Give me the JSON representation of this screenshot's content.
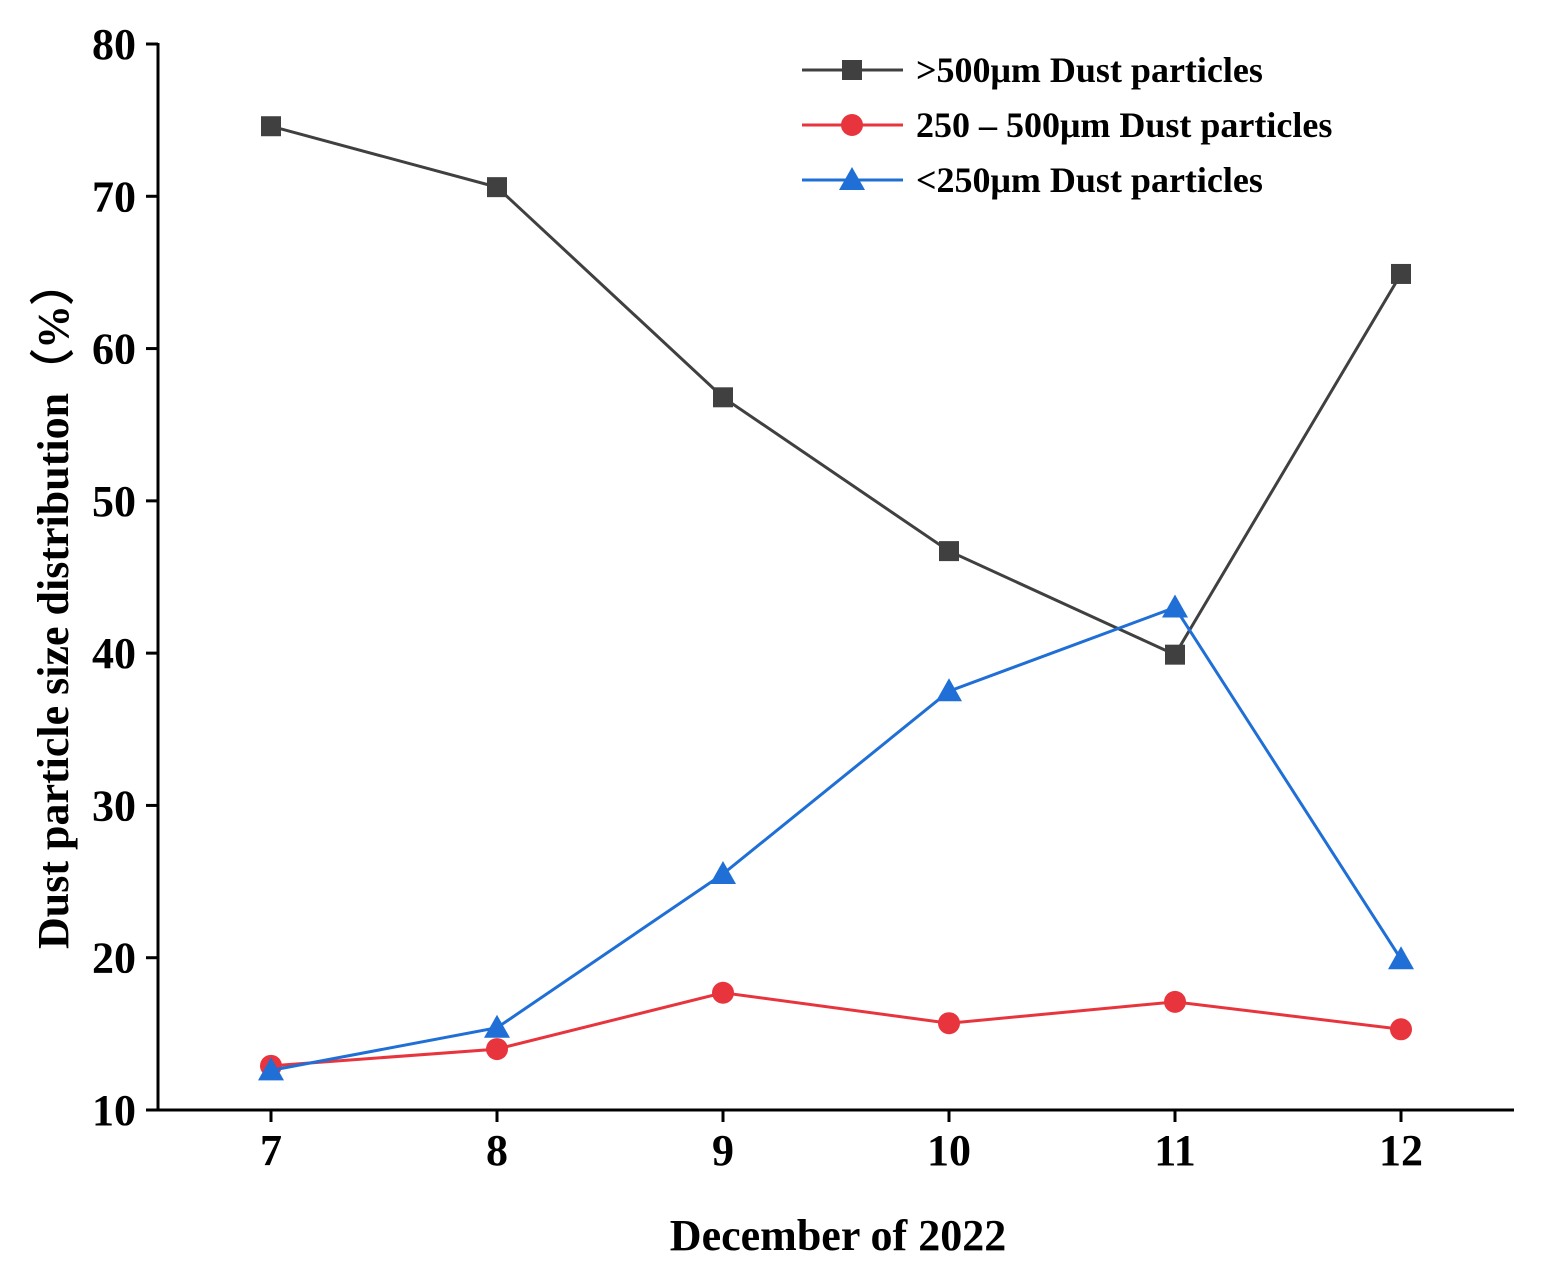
{
  "chart_data": {
    "type": "line",
    "title": "",
    "xlabel": "December of 2022",
    "ylabel": "Dust particle size distribution（%）",
    "x": [
      7,
      8,
      9,
      10,
      11,
      12
    ],
    "x_tick_labels": [
      "7",
      "8",
      "9",
      "10",
      "11",
      "12"
    ],
    "xlim": [
      6.5,
      12.5
    ],
    "ylim": [
      10,
      80
    ],
    "y_ticks": [
      10,
      20,
      30,
      40,
      50,
      60,
      70,
      80
    ],
    "y_tick_labels": [
      "10",
      "20",
      "30",
      "40",
      "50",
      "60",
      "70",
      "80"
    ],
    "grid": false,
    "legend_position": "top-right",
    "series": [
      {
        "name": ">500μm Dust particles",
        "color": "#404040",
        "marker": "square",
        "values": [
          74.6,
          70.6,
          56.8,
          46.7,
          39.9,
          64.9
        ]
      },
      {
        "name": "250 – 500μm Dust particles",
        "color": "#e8343c",
        "marker": "circle",
        "values": [
          12.9,
          14.0,
          17.7,
          15.7,
          17.1,
          15.3
        ]
      },
      {
        "name": "<250μm Dust particles",
        "color": "#1f6fd6",
        "marker": "triangle",
        "values": [
          12.6,
          15.4,
          25.5,
          37.5,
          43.0,
          19.9
        ]
      }
    ]
  }
}
